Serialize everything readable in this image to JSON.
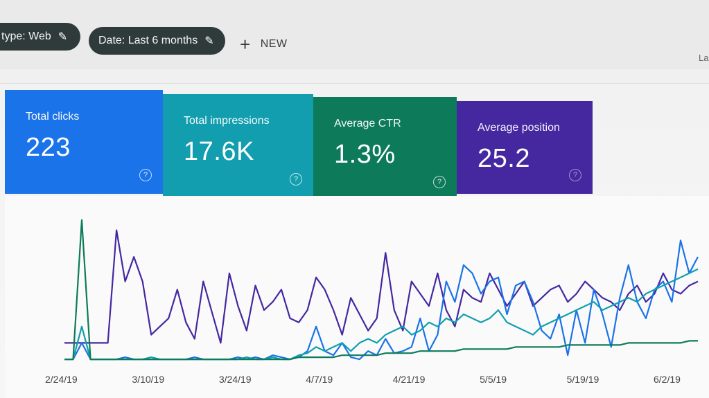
{
  "filters": {
    "type_chip": "type: Web",
    "date_chip": "Date: Last 6 months",
    "edit_icon": "pencil-icon",
    "new_label": "NEW",
    "new_icon": "plus-icon",
    "corner_text": "La"
  },
  "metrics": [
    {
      "label": "Total clicks",
      "value": "223",
      "color": "#1a73e8"
    },
    {
      "label": "Total impressions",
      "value": "17.6K",
      "color": "#129eaf"
    },
    {
      "label": "Average CTR",
      "value": "1.3%",
      "color": "#0d7a5a"
    },
    {
      "label": "Average position",
      "value": "25.2",
      "color": "#4527a0"
    }
  ],
  "help_icon": "?",
  "chart_data": {
    "type": "line",
    "x_tick_labels": [
      "2/24/19",
      "3/10/19",
      "3/24/19",
      "4/7/19",
      "4/21/19",
      "5/5/19",
      "5/19/19",
      "6/2/19"
    ],
    "series": [
      {
        "color": "#4527a0",
        "values": [
          10,
          10,
          10,
          10,
          10,
          10,
          65,
          40,
          52,
          40,
          14,
          18,
          22,
          36,
          20,
          12,
          40,
          25,
          10,
          44,
          28,
          16,
          38,
          26,
          30,
          36,
          22,
          20,
          26,
          42,
          36,
          26,
          14,
          32,
          24,
          16,
          22,
          54,
          26,
          16,
          40,
          34,
          28,
          44,
          26,
          18,
          36,
          32,
          30,
          44,
          36,
          28,
          34,
          40,
          28,
          32,
          36,
          38,
          30,
          34,
          40,
          36,
          32,
          30,
          26,
          34,
          38,
          30,
          34,
          44,
          36,
          34,
          38,
          40
        ]
      },
      {
        "color": "#1a73e8",
        "values": [
          2,
          2,
          10,
          2,
          2,
          2,
          2,
          3,
          2,
          2,
          2,
          2,
          2,
          2,
          2,
          3,
          2,
          2,
          2,
          2,
          3,
          2,
          3,
          2,
          4,
          3,
          2,
          3,
          6,
          18,
          6,
          4,
          10,
          3,
          2,
          6,
          4,
          12,
          5,
          6,
          8,
          22,
          6,
          14,
          40,
          30,
          48,
          44,
          34,
          40,
          42,
          24,
          38,
          40,
          30,
          16,
          12,
          24,
          4,
          26,
          10,
          36,
          24,
          8,
          32,
          48,
          30,
          22,
          36,
          40,
          30,
          60,
          44,
          52
        ]
      },
      {
        "color": "#129eaf",
        "values": [
          2,
          2,
          18,
          2,
          2,
          2,
          2,
          2,
          2,
          2,
          3,
          2,
          2,
          2,
          2,
          2,
          2,
          2,
          2,
          2,
          2,
          3,
          2,
          2,
          3,
          2,
          2,
          4,
          5,
          8,
          6,
          8,
          10,
          6,
          10,
          12,
          10,
          14,
          16,
          18,
          14,
          16,
          20,
          18,
          22,
          20,
          24,
          22,
          20,
          22,
          26,
          20,
          18,
          16,
          14,
          18,
          20,
          22,
          24,
          26,
          28,
          30,
          26,
          28,
          30,
          32,
          30,
          34,
          36,
          38,
          40,
          42,
          44,
          46
        ]
      },
      {
        "color": "#0d7a5a",
        "values": [
          2,
          2,
          70,
          2,
          2,
          2,
          2,
          2,
          2,
          2,
          2,
          2,
          2,
          2,
          2,
          2,
          2,
          2,
          2,
          2,
          2,
          2,
          2,
          2,
          2,
          2,
          2,
          3,
          3,
          3,
          3,
          3,
          4,
          4,
          4,
          4,
          4,
          5,
          5,
          5,
          5,
          6,
          6,
          6,
          6,
          6,
          7,
          7,
          7,
          7,
          7,
          7,
          8,
          8,
          8,
          8,
          8,
          8,
          9,
          9,
          9,
          9,
          9,
          9,
          9,
          10,
          10,
          10,
          10,
          10,
          10,
          10,
          11,
          11
        ]
      }
    ],
    "grid": false,
    "legend": "none"
  }
}
